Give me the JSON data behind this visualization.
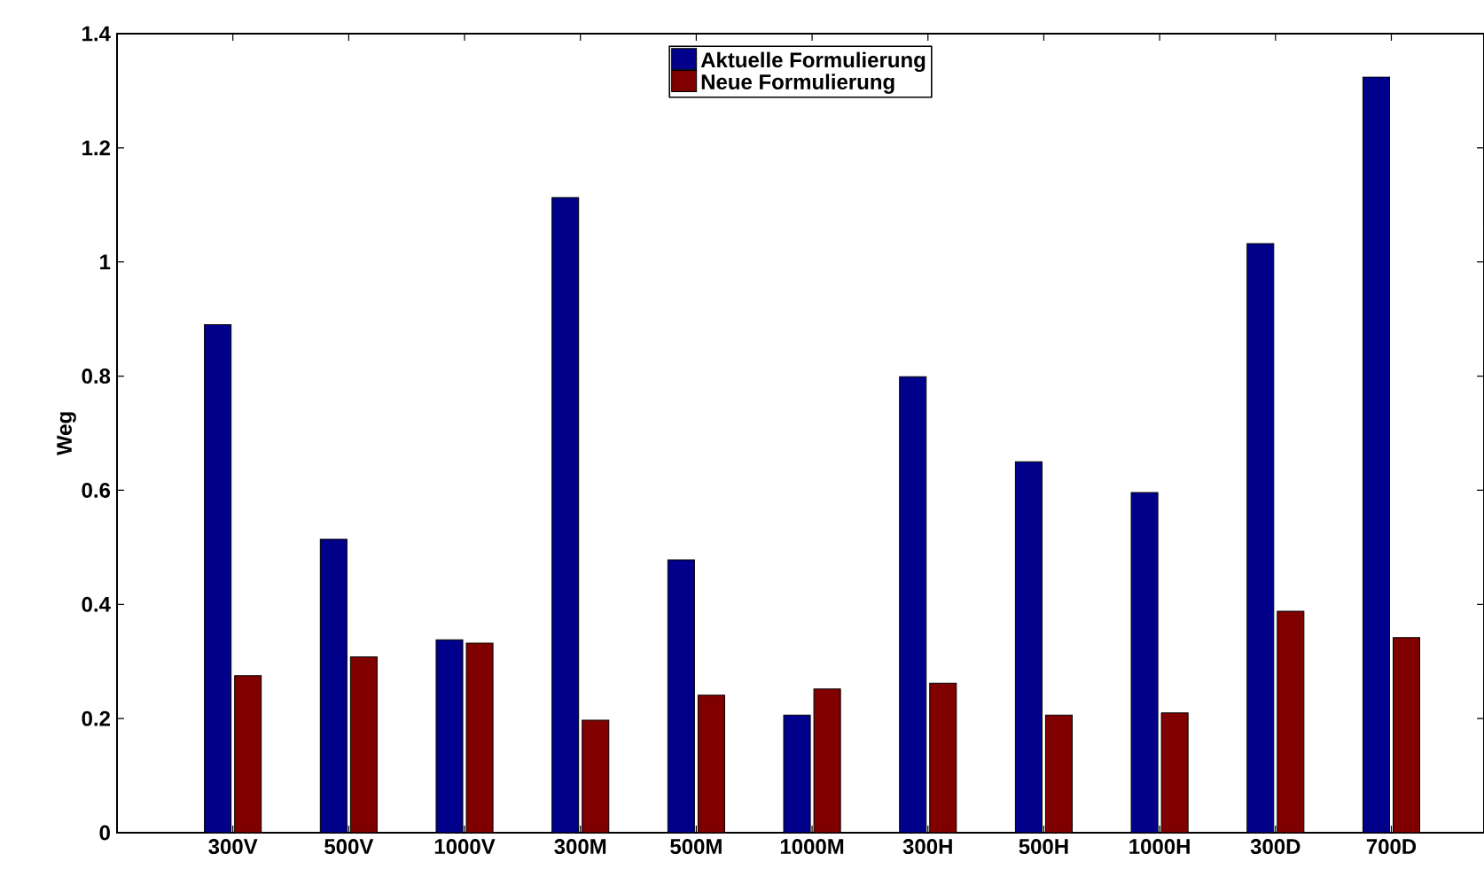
{
  "chart_data": {
    "type": "bar",
    "ylabel": "Weg",
    "categories": [
      "300V",
      "500V",
      "1000V",
      "300M",
      "500M",
      "1000M",
      "300H",
      "500H",
      "1000H",
      "300D",
      "700D"
    ],
    "series": [
      {
        "name": "Aktuelle Formulierung",
        "color": "#00008b",
        "values": [
          0.89,
          0.514,
          0.338,
          1.113,
          0.478,
          0.206,
          0.799,
          0.65,
          0.596,
          1.032,
          1.324
        ]
      },
      {
        "name": "Neue Formulierung",
        "color": "#800000",
        "values": [
          0.275,
          0.308,
          0.332,
          0.197,
          0.241,
          0.252,
          0.262,
          0.206,
          0.21,
          0.388,
          0.342
        ]
      }
    ],
    "ylim": [
      0,
      1.4
    ],
    "yticks": [
      0,
      0.2,
      0.4,
      0.6,
      0.8,
      1,
      1.2,
      1.4
    ],
    "legend": "top",
    "grid": false
  }
}
